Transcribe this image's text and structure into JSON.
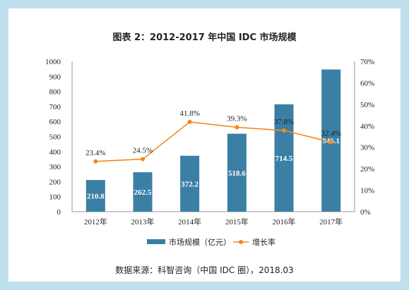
{
  "chart_data": {
    "type": "bar",
    "title": "图表 2：2012-2017 年中国 IDC 市场规模",
    "categories": [
      "2012年",
      "2013年",
      "2014年",
      "2015年",
      "2016年",
      "2017年"
    ],
    "series": [
      {
        "name": "市场规模（亿元）",
        "type": "bar",
        "axis": "left",
        "color": "#3b7fa5",
        "values": [
          210.8,
          262.5,
          372.2,
          518.6,
          714.5,
          946.1
        ]
      },
      {
        "name": "增长率",
        "type": "line",
        "axis": "right",
        "color": "#f28a1c",
        "values": [
          23.4,
          24.5,
          41.8,
          39.3,
          37.8,
          32.4
        ],
        "labels": [
          "23.4%",
          "24.5%",
          "41.8%",
          "39.3%",
          "37.8%",
          "32.4%"
        ]
      }
    ],
    "y_left": {
      "ylim": [
        0,
        1000
      ],
      "ticks": [
        "0",
        "100",
        "200",
        "300",
        "400",
        "500",
        "600",
        "700",
        "800",
        "900",
        "1000"
      ]
    },
    "y_right": {
      "ylim": [
        0,
        70
      ],
      "ticks": [
        "0%",
        "10%",
        "20%",
        "30%",
        "40%",
        "50%",
        "60%",
        "70%"
      ]
    },
    "grid": false,
    "legend_position": "bottom",
    "source": "数据来源：科智咨询（中国 IDC 圈），2018.03"
  }
}
